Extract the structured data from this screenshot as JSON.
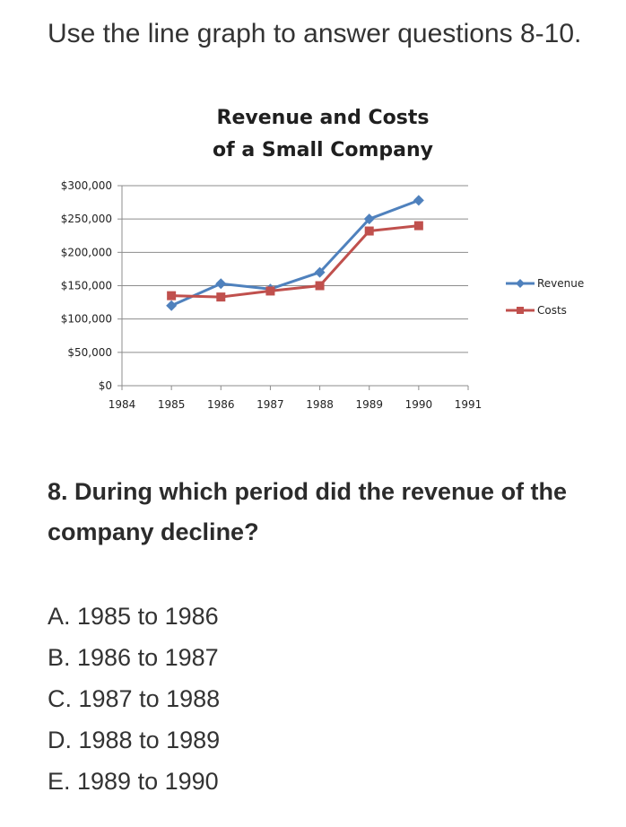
{
  "intro_text": "Use the line graph to answer questions 8-10.",
  "chart_data": {
    "type": "line",
    "title": "Revenue and Costs of a Small Company",
    "title_lines": [
      "Revenue and Costs",
      "of a Small Company"
    ],
    "xlabel": "",
    "ylabel": "",
    "x": [
      1984,
      1985,
      1986,
      1987,
      1988,
      1989,
      1990,
      1991
    ],
    "x_tick_labels": [
      "1984",
      "1985",
      "1986",
      "1987",
      "1988",
      "1989",
      "1990",
      "1991"
    ],
    "y_tick_labels": [
      "$0",
      "$50,000",
      "$100,000",
      "$150,000",
      "$200,000",
      "$250,000",
      "$300,000"
    ],
    "ylim": [
      0,
      300000
    ],
    "grid": true,
    "legend_position": "right",
    "series": [
      {
        "name": "Revenue",
        "color": "#4f81bd",
        "marker": "diamond",
        "x": [
          1985,
          1986,
          1987,
          1988,
          1989,
          1990
        ],
        "values": [
          120000,
          153000,
          145000,
          170000,
          250000,
          278000
        ]
      },
      {
        "name": "Costs",
        "color": "#c0504d",
        "marker": "square",
        "x": [
          1985,
          1986,
          1987,
          1988,
          1989,
          1990
        ],
        "values": [
          135000,
          133000,
          142000,
          150000,
          232000,
          240000
        ]
      }
    ]
  },
  "question": {
    "text": "8. During which period did the revenue of the company decline?",
    "options": [
      "A. 1985 to 1986",
      "B. 1986 to 1987",
      "C. 1987 to 1988",
      "D. 1988 to 1989",
      "E. 1989 to 1990"
    ]
  }
}
